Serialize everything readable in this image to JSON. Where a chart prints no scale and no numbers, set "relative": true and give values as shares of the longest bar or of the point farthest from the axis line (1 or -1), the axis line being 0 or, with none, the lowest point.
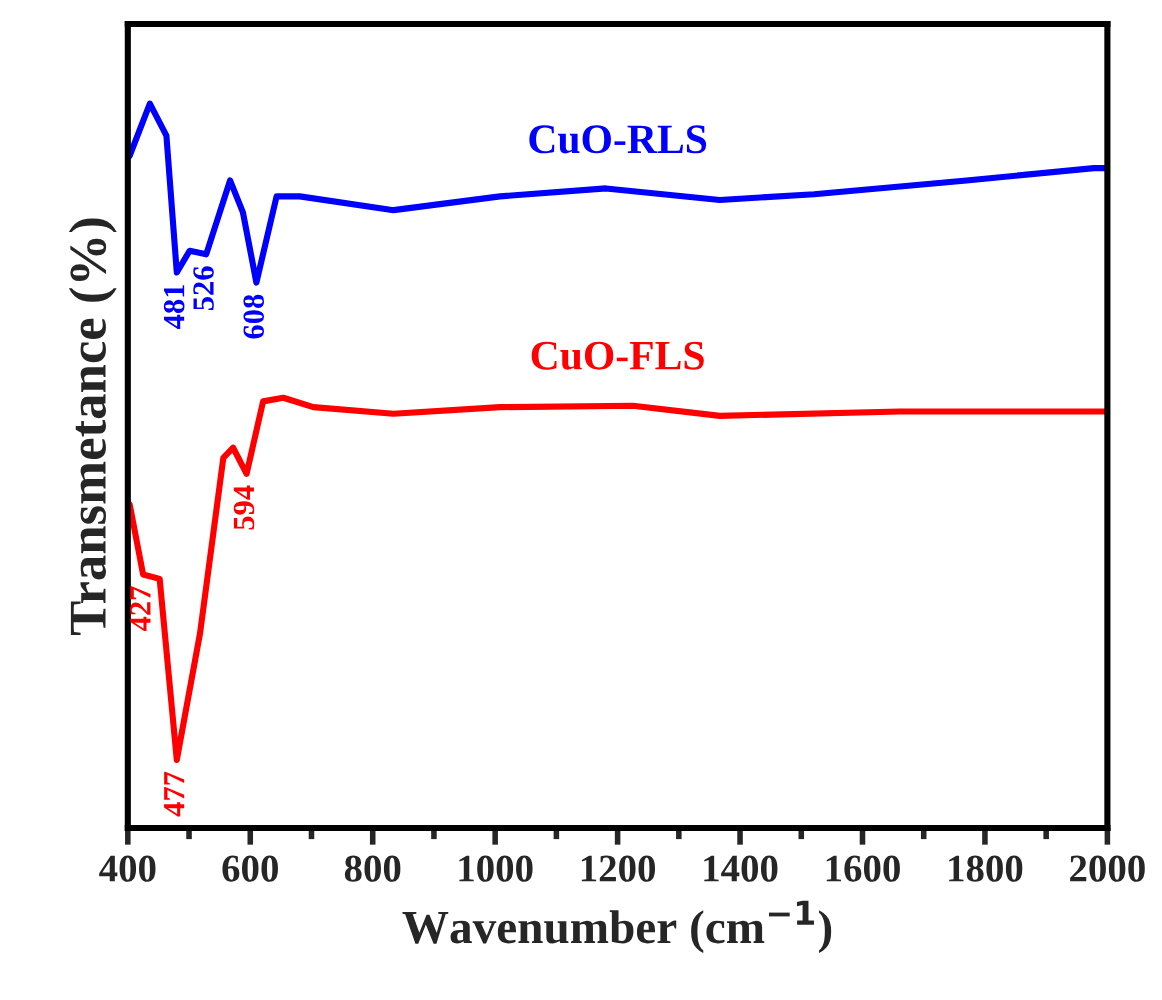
{
  "chart_data": {
    "type": "line",
    "relative": true,
    "xlabel": "Wavenumber (cm$^{−1}$)",
    "ylabel": "Transmetance (%)",
    "xlim": [
      400,
      2000
    ],
    "xticks": [
      400,
      600,
      800,
      1000,
      1200,
      1400,
      1600,
      1800,
      2000
    ],
    "grid": false,
    "legend": false,
    "tick_labels": "x",
    "marker": "none",
    "line_style": "solid",
    "series": [
      {
        "name": "CuO-RLS",
        "color": "#0000ff",
        "x": [
          403,
          436,
          463,
          480,
          501,
          528,
          567,
          588,
          610,
          643,
          681,
          834,
          1008,
          1181,
          1367,
          1521,
          1770,
          1978,
          2000
        ],
        "values": [
          0.928,
          1.0,
          0.956,
          0.767,
          0.797,
          0.792,
          0.894,
          0.85,
          0.753,
          0.872,
          0.872,
          0.853,
          0.872,
          0.883,
          0.867,
          0.875,
          0.894,
          0.911,
          0.911
        ]
      },
      {
        "name": "CuO-FLS",
        "color": "#ff0000",
        "x": [
          403,
          425,
          452,
          480,
          518,
          556,
          572,
          594,
          621,
          654,
          703,
          834,
          1008,
          1225,
          1367,
          1661,
          1998
        ],
        "values": [
          0.447,
          0.35,
          0.344,
          0.094,
          0.269,
          0.511,
          0.525,
          0.489,
          0.589,
          0.594,
          0.581,
          0.572,
          0.581,
          0.583,
          0.569,
          0.575,
          0.575
        ]
      }
    ],
    "annotations": [
      {
        "text": "481",
        "x": 480,
        "y": 0.767
      },
      {
        "text": "526",
        "x": 528,
        "y": 0.792
      },
      {
        "text": "608",
        "x": 610,
        "y": 0.753
      },
      {
        "text": "427",
        "x": 425,
        "y": 0.35
      },
      {
        "text": "477",
        "x": 480,
        "y": 0.094
      },
      {
        "text": "594",
        "x": 594,
        "y": 0.489
      }
    ]
  }
}
